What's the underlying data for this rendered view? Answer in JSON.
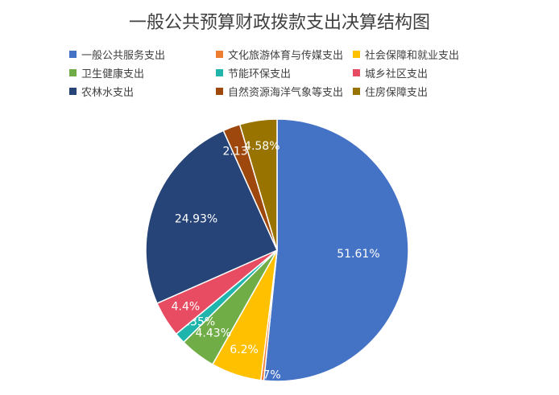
{
  "chart_data": {
    "type": "pie",
    "title": "一般公共预算财政拨款支出决算结构图",
    "legend_position": "top",
    "slices": [
      {
        "label": "一般公共服务支出",
        "value": 51.61,
        "value_label": "51.61%",
        "color": "#4472C4"
      },
      {
        "label": "文化旅游体育与传媒支出",
        "value": 0.37,
        "value_label": "0.37%",
        "color": "#ED7D31"
      },
      {
        "label": "社会保障和就业支出",
        "value": 6.2,
        "value_label": "6.2%",
        "color": "#FFC000"
      },
      {
        "label": "卫生健康支出",
        "value": 4.43,
        "value_label": "4.43%",
        "color": "#70AD47"
      },
      {
        "label": "节能环保支出",
        "value": 1.35,
        "value_label": "1.35%",
        "color": "#1FB5AD"
      },
      {
        "label": "城乡社区支出",
        "value": 4.4,
        "value_label": "4.4%",
        "color": "#E84C62"
      },
      {
        "label": "农林水支出",
        "value": 24.93,
        "value_label": "24.93%",
        "color": "#264478"
      },
      {
        "label": "自然资源海洋气象等支出",
        "value": 2.13,
        "value_label": "2.13%",
        "color": "#9E480E"
      },
      {
        "label": "住房保障支出",
        "value": 4.58,
        "value_label": "4.58%",
        "color": "#997300"
      }
    ]
  }
}
